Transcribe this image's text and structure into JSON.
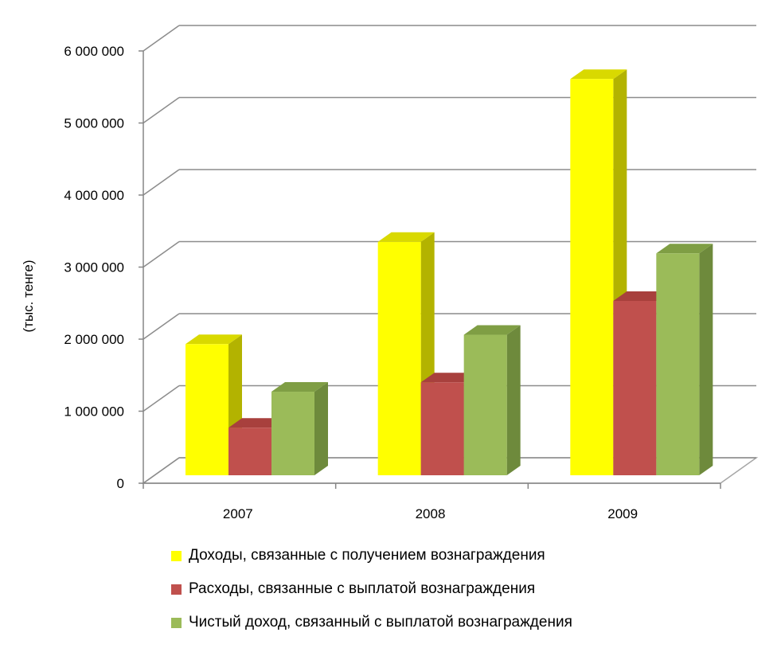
{
  "chart_data": {
    "type": "bar",
    "categories": [
      "2007",
      "2008",
      "2009"
    ],
    "series": [
      {
        "name": "Доходы, связанные с получением вознаграждения",
        "values": [
          1820000,
          3240000,
          5500000
        ],
        "color": "#ffff00",
        "side_color": "#b3b300",
        "top_color": "#d9d900"
      },
      {
        "name": "Расходы, связанные с выплатой вознаграждения",
        "values": [
          660000,
          1290000,
          2420000
        ],
        "color": "#c0504d",
        "side_color": "#8c3836",
        "top_color": "#a8403d"
      },
      {
        "name": "Чистый доход, связанный с выплатой вознаграждения",
        "values": [
          1160000,
          1950000,
          3080000
        ],
        "color": "#9bbb59",
        "side_color": "#6e8a3c",
        "top_color": "#7f9e44"
      }
    ],
    "ylabel": "(тыс. тенге)",
    "ylim": [
      0,
      6000000
    ],
    "yticks": [
      "0",
      "1 000 000",
      "2 000 000",
      "3 000 000",
      "4 000 000",
      "5 000 000",
      "6 000 000"
    ],
    "grid": true,
    "legend_position": "bottom"
  }
}
